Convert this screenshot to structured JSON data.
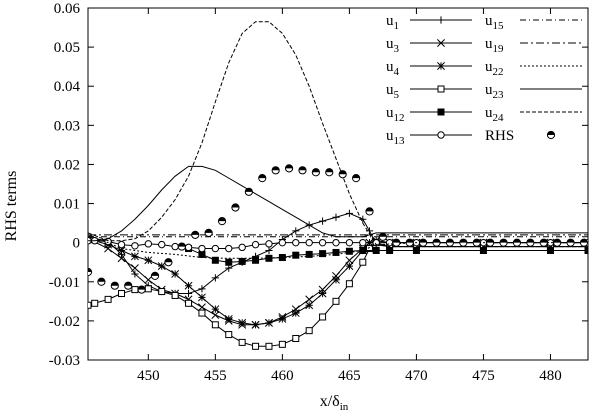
{
  "chart_data": {
    "type": "line",
    "xlabel": "x/δ_in",
    "ylabel": "RHS terms",
    "xlim": [
      445.5,
      482.8
    ],
    "ylim": [
      -0.03,
      0.06
    ],
    "xticks": [
      450,
      455,
      460,
      465,
      470,
      475,
      480
    ],
    "yticks": [
      -0.03,
      -0.02,
      -0.01,
      0,
      0.01,
      0.02,
      0.03,
      0.04,
      0.05,
      0.06
    ],
    "ytick_labels": [
      "-0.03",
      "-0.02",
      "-0.01",
      "0",
      "0.01",
      "0.02",
      "0.03",
      "0.04",
      "0.05",
      "0.06"
    ],
    "grid": false,
    "legend_position": "top-right",
    "series": [
      {
        "name": "u1",
        "marker": "plus",
        "dash": "solid",
        "x": [
          445.5,
          447,
          448,
          449,
          450,
          451,
          452,
          453,
          454,
          455,
          456,
          457,
          458,
          459,
          460,
          461,
          462,
          463,
          464,
          465,
          466,
          466.5,
          467,
          468,
          470,
          475,
          480,
          482.8
        ],
        "y": [
          0.0015,
          0.0003,
          -0.003,
          -0.008,
          -0.011,
          -0.0125,
          -0.013,
          -0.013,
          -0.0118,
          -0.009,
          -0.0065,
          -0.005,
          -0.0035,
          -0.002,
          0.0008,
          0.003,
          0.0045,
          0.0055,
          0.0065,
          0.0075,
          0.006,
          0.003,
          -0.0005,
          -0.001,
          -0.001,
          -0.001,
          -0.001,
          -0.001
        ]
      },
      {
        "name": "u3",
        "marker": "cross",
        "dash": "solid",
        "x": [
          445.5,
          447,
          448,
          449,
          450,
          451,
          452,
          453,
          454,
          455,
          456,
          457,
          458,
          459,
          460,
          461,
          462,
          463,
          464,
          465,
          466,
          466.5,
          467,
          468,
          470,
          475,
          480,
          482.8
        ],
        "y": [
          0.001,
          -0.0015,
          -0.004,
          -0.0065,
          -0.0095,
          -0.012,
          -0.013,
          -0.0145,
          -0.0165,
          -0.0185,
          -0.02,
          -0.021,
          -0.021,
          -0.0205,
          -0.019,
          -0.017,
          -0.0145,
          -0.012,
          -0.0085,
          -0.0045,
          -0.0015,
          0.0,
          0.0005,
          0.0,
          0.0,
          0.0,
          0.0,
          0.0
        ]
      },
      {
        "name": "u4",
        "marker": "star",
        "dash": "solid",
        "x": [
          445.5,
          447,
          448,
          449,
          450,
          451,
          452,
          453,
          454,
          455,
          456,
          457,
          458,
          459,
          460,
          461,
          462,
          463,
          464,
          465,
          466,
          466.5,
          467,
          468,
          470,
          475,
          480,
          482.8
        ],
        "y": [
          0.001,
          -0.0005,
          -0.002,
          -0.0035,
          -0.0045,
          -0.006,
          -0.008,
          -0.011,
          -0.014,
          -0.017,
          -0.0195,
          -0.0205,
          -0.021,
          -0.0205,
          -0.0195,
          -0.018,
          -0.016,
          -0.013,
          -0.0095,
          -0.006,
          -0.002,
          0.0,
          0.0005,
          0.0,
          0.0,
          0.0,
          0.0,
          0.0
        ]
      },
      {
        "name": "u5",
        "marker": "square-open",
        "dash": "solid",
        "x": [
          445.5,
          446,
          447,
          448,
          449,
          450,
          451,
          452,
          453,
          454,
          455,
          456,
          457,
          458,
          459,
          460,
          461,
          462,
          463,
          464,
          465,
          466,
          466.5,
          467,
          468,
          470,
          475,
          480,
          482.8
        ],
        "y": [
          -0.016,
          -0.0155,
          -0.0145,
          -0.013,
          -0.012,
          -0.0118,
          -0.0125,
          -0.0135,
          -0.0155,
          -0.018,
          -0.021,
          -0.0235,
          -0.0255,
          -0.0265,
          -0.0265,
          -0.026,
          -0.0245,
          -0.0225,
          -0.019,
          -0.015,
          -0.0105,
          -0.005,
          -0.0015,
          0.0,
          -0.001,
          -0.001,
          -0.001,
          -0.001,
          -0.001
        ]
      },
      {
        "name": "u12",
        "marker": "square-filled",
        "dash": "solid",
        "x": [
          453,
          454,
          455,
          456,
          457,
          458,
          459,
          460,
          461,
          462,
          463,
          464,
          465,
          466,
          467,
          468,
          470,
          475,
          480,
          482.8
        ],
        "y": [
          -0.0015,
          -0.003,
          -0.0045,
          -0.005,
          -0.0048,
          -0.0045,
          -0.004,
          -0.0038,
          -0.0032,
          -0.003,
          -0.0028,
          -0.0025,
          -0.0022,
          -0.002,
          -0.002,
          -0.002,
          -0.002,
          -0.002,
          -0.002,
          -0.002
        ]
      },
      {
        "name": "u13",
        "marker": "circle-open",
        "dash": "solid",
        "x": [
          445.5,
          446,
          447,
          448,
          449,
          450,
          451,
          452,
          453,
          454,
          455,
          456,
          457,
          458,
          459,
          460,
          461,
          462,
          463,
          464,
          465,
          466,
          467,
          468,
          470,
          475,
          480,
          482.8
        ],
        "y": [
          0.0005,
          0.0005,
          0.0003,
          -0.0005,
          -0.0008,
          -0.0003,
          -0.0005,
          -0.001,
          -0.0012,
          -0.0015,
          -0.0015,
          -0.0015,
          -0.0012,
          -0.0005,
          -0.0003,
          0.0,
          0.0,
          0.0,
          0.0,
          0.0,
          0.0,
          0.0,
          0.0,
          0.0,
          0.0,
          0.0,
          0.0,
          0.0
        ]
      },
      {
        "name": "u15",
        "marker": "none",
        "dash": "6,3,1,3",
        "x": [
          445.5,
          448,
          450,
          452,
          454,
          456,
          458,
          460,
          462,
          464,
          466,
          467,
          470,
          475,
          480,
          482.8
        ],
        "y": [
          0.0015,
          0.0015,
          0.0015,
          0.0015,
          0.0015,
          0.0015,
          0.0015,
          0.0015,
          0.0015,
          0.0015,
          0.0015,
          0.0015,
          0.0015,
          0.0015,
          0.0015,
          0.0015
        ]
      },
      {
        "name": "u19",
        "marker": "none",
        "dash": "8,3,2,3",
        "x": [
          445.5,
          448,
          450,
          452,
          454,
          456,
          458,
          460,
          462,
          464,
          466,
          467,
          470,
          475,
          480,
          482.8
        ],
        "y": [
          0.002,
          0.002,
          0.002,
          0.002,
          0.002,
          0.002,
          0.002,
          0.002,
          0.002,
          0.002,
          0.002,
          0.002,
          0.002,
          0.002,
          0.002,
          0.002
        ]
      },
      {
        "name": "u22",
        "marker": "none",
        "dash": "2,2",
        "x": [
          445.5,
          447,
          448,
          450,
          452,
          454,
          456,
          458,
          460,
          462,
          464,
          466,
          467,
          470,
          475,
          480,
          482.8
        ],
        "y": [
          0.002,
          0.0,
          -0.0015,
          -0.0025,
          -0.003,
          -0.0038,
          -0.004,
          -0.004,
          -0.0038,
          -0.0035,
          -0.003,
          -0.002,
          -0.0005,
          0.0,
          0.0,
          0.0,
          0.0
        ]
      },
      {
        "name": "u23",
        "marker": "none",
        "dash": "solid",
        "x": [
          445.5,
          446,
          447,
          448,
          449,
          450,
          451,
          452,
          453,
          454,
          455,
          456,
          457,
          458,
          459,
          460,
          461,
          462,
          463,
          464,
          465,
          466,
          467,
          468,
          470,
          475,
          480,
          482.8
        ],
        "y": [
          0.0005,
          0.0005,
          0.001,
          0.003,
          0.006,
          0.0095,
          0.0135,
          0.017,
          0.0195,
          0.0195,
          0.0185,
          0.0165,
          0.0145,
          0.0125,
          0.0105,
          0.0085,
          0.0065,
          0.0045,
          0.0025,
          0.0015,
          0.0015,
          0.0015,
          0.0025,
          0.0025,
          0.0025,
          0.0025,
          0.0025,
          0.0025
        ]
      },
      {
        "name": "u24",
        "marker": "none",
        "dash": "4,2",
        "x": [
          445.5,
          447,
          448,
          449,
          450,
          451,
          452,
          453,
          454,
          455,
          456,
          457,
          458,
          459,
          460,
          461,
          462,
          463,
          464,
          465,
          466,
          467,
          468,
          470,
          475,
          480,
          482.8
        ],
        "y": [
          0.0025,
          0.0005,
          0.0005,
          0.001,
          0.003,
          0.0065,
          0.011,
          0.017,
          0.0255,
          0.036,
          0.046,
          0.0535,
          0.0565,
          0.0565,
          0.0535,
          0.048,
          0.04,
          0.0305,
          0.0215,
          0.0125,
          0.005,
          -0.0005,
          -0.001,
          -0.001,
          -0.001,
          -0.001,
          -0.001
        ]
      },
      {
        "name": "RHS",
        "marker": "half-circle",
        "dash": "none",
        "x": [
          445.5,
          446.5,
          447.5,
          448.5,
          449.5,
          450.5,
          451.5,
          452.5,
          453.5,
          454.5,
          455.5,
          456.5,
          457.5,
          458.5,
          459.5,
          460.5,
          461.5,
          462.5,
          463.5,
          464.5,
          465.5,
          466.5,
          467.5,
          468.5,
          469.5,
          470.5,
          471.5,
          472.5,
          473.5,
          474.5,
          475.5,
          476.5,
          477.5,
          478.5,
          479.5,
          480.5,
          481.5,
          482.5
        ],
        "y": [
          -0.0075,
          -0.01,
          -0.011,
          -0.011,
          -0.012,
          -0.0085,
          -0.005,
          -0.001,
          0.002,
          0.0025,
          0.0055,
          0.009,
          0.013,
          0.0165,
          0.0185,
          0.019,
          0.0185,
          0.018,
          0.018,
          0.0175,
          0.0165,
          0.008,
          0.0015,
          0.0,
          0.0,
          0.0,
          0.0,
          0.0,
          0.0,
          0.0,
          0.0,
          0.0,
          0.0,
          0.0,
          0.0,
          0.0,
          0.0,
          0.0
        ]
      }
    ]
  }
}
